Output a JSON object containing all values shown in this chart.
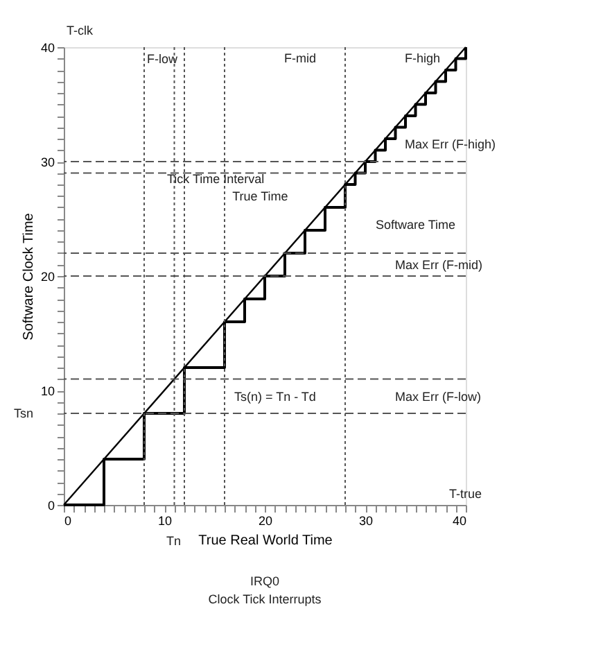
{
  "chart_data": {
    "type": "line",
    "xlabel": "True Real World Time",
    "ylabel": "Software Clock Time",
    "xlim": [
      0,
      40
    ],
    "ylim": [
      0,
      40
    ],
    "xticks": [
      0,
      {
        "value": 1,
        "label": null
      },
      {
        "value": 2,
        "label": null
      },
      {
        "value": 3,
        "label": null
      },
      {
        "value": 4,
        "label": null
      },
      {
        "value": 5,
        "label": null
      },
      {
        "value": 6,
        "label": null
      },
      {
        "value": 7,
        "label": null
      },
      {
        "value": 8,
        "label": null
      },
      {
        "value": 9,
        "label": null
      },
      10,
      {
        "value": 11,
        "label": null
      },
      {
        "value": 12,
        "label": null
      },
      {
        "value": 13,
        "label": null
      },
      {
        "value": 14,
        "label": null
      },
      {
        "value": 15,
        "label": null
      },
      {
        "value": 16,
        "label": null
      },
      {
        "value": 17,
        "label": null
      },
      {
        "value": 18,
        "label": null
      },
      {
        "value": 19,
        "label": null
      },
      20,
      {
        "value": 21,
        "label": null
      },
      {
        "value": 22,
        "label": null
      },
      {
        "value": 23,
        "label": null
      },
      {
        "value": 24,
        "label": null
      },
      {
        "value": 25,
        "label": null
      },
      {
        "value": 26,
        "label": null
      },
      {
        "value": 27,
        "label": null
      },
      {
        "value": 28,
        "label": null
      },
      {
        "value": 29,
        "label": null
      },
      30,
      {
        "value": 31,
        "label": null
      },
      {
        "value": 32,
        "label": null
      },
      {
        "value": 33,
        "label": null
      },
      {
        "value": 34,
        "label": null
      },
      {
        "value": 35,
        "label": null
      },
      {
        "value": 36,
        "label": null
      },
      {
        "value": 37,
        "label": null
      },
      {
        "value": 38,
        "label": null
      },
      {
        "value": 39,
        "label": null
      },
      40
    ],
    "yticks": [
      0,
      {
        "value": 1,
        "label": null
      },
      {
        "value": 2,
        "label": null
      },
      {
        "value": 3,
        "label": null
      },
      {
        "value": 4,
        "label": null
      },
      {
        "value": 5,
        "label": null
      },
      {
        "value": 6,
        "label": null
      },
      {
        "value": 7,
        "label": null
      },
      {
        "value": 8,
        "label": null
      },
      {
        "value": 9,
        "label": null
      },
      10,
      {
        "value": 11,
        "label": null
      },
      {
        "value": 12,
        "label": null
      },
      {
        "value": 13,
        "label": null
      },
      {
        "value": 14,
        "label": null
      },
      {
        "value": 15,
        "label": null
      },
      {
        "value": 16,
        "label": null
      },
      {
        "value": 17,
        "label": null
      },
      {
        "value": 18,
        "label": null
      },
      {
        "value": 19,
        "label": null
      },
      20,
      {
        "value": 21,
        "label": null
      },
      {
        "value": 22,
        "label": null
      },
      {
        "value": 23,
        "label": null
      },
      {
        "value": 24,
        "label": null
      },
      {
        "value": 25,
        "label": null
      },
      {
        "value": 26,
        "label": null
      },
      {
        "value": 27,
        "label": null
      },
      {
        "value": 28,
        "label": null
      },
      {
        "value": 29,
        "label": null
      },
      30,
      {
        "value": 31,
        "label": null
      },
      {
        "value": 32,
        "label": null
      },
      {
        "value": 33,
        "label": null
      },
      {
        "value": 34,
        "label": null
      },
      {
        "value": 35,
        "label": null
      },
      {
        "value": 36,
        "label": null
      },
      {
        "value": 37,
        "label": null
      },
      {
        "value": 38,
        "label": null
      },
      {
        "value": 39,
        "label": null
      },
      40
    ],
    "grid": false,
    "marker": "none",
    "series": [
      {
        "color": "#000000",
        "x": [
          0,
          40
        ],
        "values": [
          0,
          40
        ]
      },
      {
        "type": "step",
        "color": "#000000",
        "x": [
          0,
          4,
          8,
          12,
          16,
          18,
          20,
          22,
          24,
          26,
          28,
          29,
          30,
          31,
          32,
          33,
          34,
          35,
          36,
          37,
          38,
          39,
          40
        ],
        "values": [
          0,
          4,
          8,
          12,
          16,
          18,
          20,
          22,
          24,
          26,
          28,
          29,
          30,
          31,
          32,
          33,
          34,
          35,
          36,
          37,
          38,
          39,
          40
        ]
      }
    ],
    "ref_lines": [
      {
        "axis": "x",
        "value": 8,
        "line_style": "dotted",
        "color": "#555555"
      },
      {
        "axis": "x",
        "value": 11,
        "line_style": "dotted",
        "color": "#555555"
      },
      {
        "axis": "x",
        "value": 12,
        "line_style": "dotted",
        "color": "#555555"
      },
      {
        "axis": "x",
        "value": 16,
        "line_style": "dotted",
        "color": "#555555"
      },
      {
        "axis": "x",
        "value": 28,
        "line_style": "dotted",
        "color": "#555555"
      },
      {
        "axis": "y",
        "value": 8,
        "line_style": "dashed",
        "color": "#555555"
      },
      {
        "axis": "y",
        "value": 11,
        "line_style": "dashed",
        "color": "#555555"
      },
      {
        "axis": "y",
        "value": 20,
        "line_style": "dashed",
        "color": "#555555"
      },
      {
        "axis": "y",
        "value": 22,
        "line_style": "dashed",
        "color": "#555555"
      },
      {
        "axis": "y",
        "value": 29,
        "line_style": "dashed",
        "color": "#555555"
      },
      {
        "axis": "y",
        "value": 30,
        "line_style": "dashed",
        "color": "#555555"
      }
    ],
    "annotations": [
      "T-clk",
      "T-true",
      {
        "text": "F-low",
        "x": 8,
        "y": 39
      },
      "F-mid",
      "F-high",
      {
        "text": "Tick Time Interval",
        "x": 10,
        "y": 28.5
      },
      {
        "text": "True Time",
        "x": 16.5,
        "y": 27
      },
      "Software Time",
      "Max Err (F-high)",
      "Max Err (F-mid)",
      "Max Err (F-low)",
      "Ts(n) = Tn - Td",
      "Tsn",
      "Tn",
      "IRQ0",
      "Clock Tick Interrupts"
    ]
  }
}
